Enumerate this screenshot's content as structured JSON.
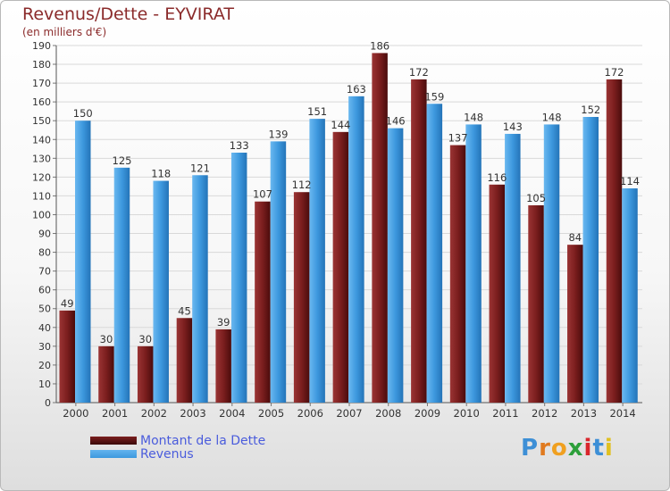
{
  "title": "Revenus/Dette - EYVIRAT",
  "subtitle": "(en milliers d'€)",
  "colors": {
    "dette": "#7b1e1e",
    "revenus": "#3d98de",
    "text": "#8b2b2b",
    "legend_text": "#4a5cdc"
  },
  "legend": {
    "dette_label": "Montant de la Dette",
    "revenus_label": "Revenus"
  },
  "logo": {
    "letters": [
      "P",
      "r",
      "o",
      "x",
      "i",
      "t",
      "i"
    ],
    "colors": [
      "#3d8fd6",
      "#e07a1f",
      "#f0a020",
      "#2c9f3a",
      "#d9262c",
      "#3d8fd6",
      "#e0c020"
    ]
  },
  "chart_data": {
    "type": "bar",
    "categories": [
      "2000",
      "2001",
      "2002",
      "2003",
      "2004",
      "2005",
      "2006",
      "2007",
      "2008",
      "2009",
      "2010",
      "2011",
      "2012",
      "2013",
      "2014"
    ],
    "series": [
      {
        "name": "Montant de la Dette",
        "values": [
          49,
          30,
          30,
          45,
          39,
          107,
          112,
          144,
          186,
          172,
          137,
          116,
          105,
          84,
          172
        ]
      },
      {
        "name": "Revenus",
        "values": [
          150,
          125,
          118,
          121,
          133,
          139,
          151,
          163,
          146,
          159,
          148,
          143,
          148,
          152,
          114
        ]
      }
    ],
    "ylim": [
      0,
      190
    ],
    "ytick_step": 10,
    "grid": true,
    "legend_position": "bottom-left"
  }
}
